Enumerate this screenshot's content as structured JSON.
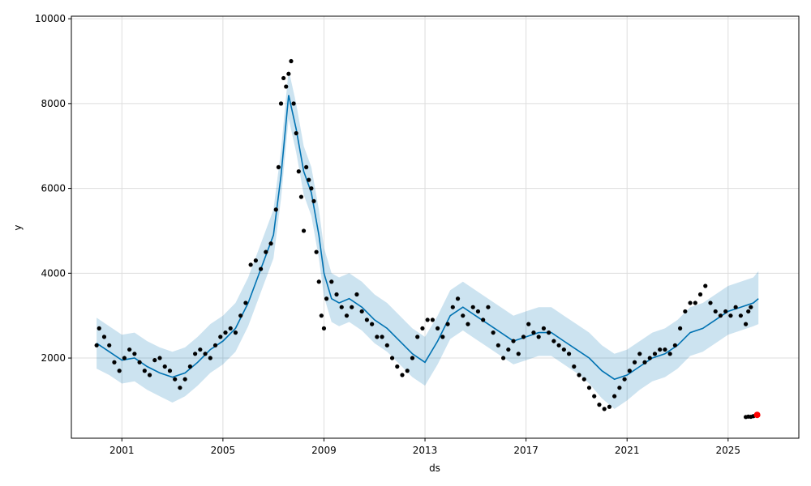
{
  "chart_data": {
    "type": "line",
    "title": "",
    "xlabel": "ds",
    "ylabel": "y",
    "xlim": [
      1999.0,
      2027.8
    ],
    "ylim": [
      110,
      10060
    ],
    "grid": true,
    "x_ticks": [
      2001,
      2005,
      2009,
      2013,
      2017,
      2021,
      2025
    ],
    "x_tick_labels": [
      "2001",
      "2005",
      "2009",
      "2013",
      "2017",
      "2021",
      "2025"
    ],
    "y_ticks": [
      2000,
      4000,
      6000,
      8000,
      10000
    ],
    "y_tick_labels": [
      "2000",
      "4000",
      "6000",
      "8000",
      "10000"
    ],
    "colors": {
      "observed": "#000000",
      "forecast": "#0072b2",
      "interval": "#0072b2",
      "highlight": "#ff0000",
      "grid": "#dddddd"
    },
    "observed": {
      "x": [
        2000.0,
        2000.1,
        2000.3,
        2000.5,
        2000.7,
        2000.9,
        2001.1,
        2001.3,
        2001.5,
        2001.7,
        2001.9,
        2002.1,
        2002.3,
        2002.5,
        2002.7,
        2002.9,
        2003.1,
        2003.3,
        2003.5,
        2003.7,
        2003.9,
        2004.1,
        2004.3,
        2004.5,
        2004.7,
        2004.9,
        2005.1,
        2005.3,
        2005.5,
        2005.7,
        2005.9,
        2006.1,
        2006.3,
        2006.5,
        2006.7,
        2006.9,
        2007.1,
        2007.2,
        2007.3,
        2007.4,
        2007.5,
        2007.6,
        2007.7,
        2007.8,
        2007.9,
        2008.0,
        2008.1,
        2008.2,
        2008.3,
        2008.4,
        2008.5,
        2008.6,
        2008.7,
        2008.8,
        2008.9,
        2009.0,
        2009.1,
        2009.3,
        2009.5,
        2009.7,
        2009.9,
        2010.1,
        2010.3,
        2010.5,
        2010.7,
        2010.9,
        2011.1,
        2011.3,
        2011.5,
        2011.7,
        2011.9,
        2012.1,
        2012.3,
        2012.5,
        2012.7,
        2012.9,
        2013.1,
        2013.3,
        2013.5,
        2013.7,
        2013.9,
        2014.1,
        2014.3,
        2014.5,
        2014.7,
        2014.9,
        2015.1,
        2015.3,
        2015.5,
        2015.7,
        2015.9,
        2016.1,
        2016.3,
        2016.5,
        2016.7,
        2016.9,
        2017.1,
        2017.3,
        2017.5,
        2017.7,
        2017.9,
        2018.1,
        2018.3,
        2018.5,
        2018.7,
        2018.9,
        2019.1,
        2019.3,
        2019.5,
        2019.7,
        2019.9,
        2020.1,
        2020.3,
        2020.5,
        2020.7,
        2020.9,
        2021.1,
        2021.3,
        2021.5,
        2021.7,
        2021.9,
        2022.1,
        2022.3,
        2022.5,
        2022.7,
        2022.9,
        2023.1,
        2023.3,
        2023.5,
        2023.7,
        2023.9,
        2024.1,
        2024.3,
        2024.5,
        2024.7,
        2024.9,
        2025.1,
        2025.3,
        2025.5,
        2025.7,
        2025.8,
        2025.9
      ],
      "y": [
        2300,
        2700,
        2500,
        2300,
        1900,
        1700,
        2000,
        2200,
        2100,
        1900,
        1700,
        1600,
        1950,
        2000,
        1800,
        1700,
        1500,
        1300,
        1500,
        1800,
        2100,
        2200,
        2100,
        2000,
        2300,
        2500,
        2600,
        2700,
        2600,
        3000,
        3300,
        4200,
        4300,
        4100,
        4500,
        4700,
        5500,
        6500,
        8000,
        8600,
        8400,
        8700,
        9000,
        8000,
        7300,
        6400,
        5800,
        5000,
        6500,
        6200,
        6000,
        5700,
        4500,
        3800,
        3000,
        2700,
        3400,
        3800,
        3500,
        3200,
        3000,
        3200,
        3500,
        3100,
        2900,
        2800,
        2500,
        2500,
        2300,
        2000,
        1800,
        1600,
        1700,
        2000,
        2500,
        2700,
        2900,
        2900,
        2700,
        2500,
        2800,
        3200,
        3400,
        3000,
        2800,
        3200,
        3100,
        2900,
        3200,
        2600,
        2300,
        2000,
        2200,
        2400,
        2100,
        2500,
        2800,
        2600,
        2500,
        2700,
        2600,
        2400,
        2300,
        2200,
        2100,
        1800,
        1600,
        1500,
        1300,
        1100,
        900,
        800,
        850,
        1100,
        1300,
        1500,
        1700,
        1900,
        2100,
        1900,
        2000,
        2100,
        2200,
        2200,
        2100,
        2300,
        2700,
        3100,
        3300,
        3300,
        3500,
        3700,
        3300,
        3100,
        3000,
        3100,
        3000,
        3200,
        3000,
        2800,
        3100,
        3200
      ]
    },
    "forecast": {
      "x": [
        2000.0,
        2000.5,
        2001.0,
        2001.5,
        2002.0,
        2002.5,
        2003.0,
        2003.5,
        2004.0,
        2004.5,
        2005.0,
        2005.5,
        2006.0,
        2006.5,
        2007.0,
        2007.3,
        2007.6,
        2007.9,
        2008.2,
        2008.5,
        2008.8,
        2009.0,
        2009.3,
        2009.6,
        2010.0,
        2010.5,
        2011.0,
        2011.5,
        2012.0,
        2012.5,
        2013.0,
        2013.5,
        2014.0,
        2014.5,
        2015.0,
        2015.5,
        2016.0,
        2016.5,
        2017.0,
        2017.5,
        2018.0,
        2018.5,
        2019.0,
        2019.5,
        2020.0,
        2020.5,
        2021.0,
        2021.5,
        2022.0,
        2022.5,
        2023.0,
        2023.5,
        2024.0,
        2024.5,
        2025.0,
        2025.5,
        2026.0,
        2026.2
      ],
      "y": [
        2350,
        2150,
        1950,
        2000,
        1800,
        1650,
        1550,
        1650,
        1900,
        2200,
        2400,
        2700,
        3300,
        4100,
        4900,
        6300,
        8200,
        7400,
        6400,
        5900,
        4900,
        4000,
        3400,
        3300,
        3400,
        3200,
        2900,
        2700,
        2400,
        2100,
        1900,
        2400,
        3000,
        3200,
        3000,
        2800,
        2600,
        2400,
        2500,
        2600,
        2600,
        2400,
        2200,
        2000,
        1700,
        1500,
        1600,
        1800,
        2000,
        2100,
        2300,
        2600,
        2700,
        2900,
        3100,
        3200,
        3300,
        3400
      ],
      "lower": [
        1750,
        1600,
        1400,
        1450,
        1250,
        1100,
        950,
        1100,
        1350,
        1650,
        1850,
        2150,
        2750,
        3550,
        4350,
        5750,
        7650,
        6850,
        5850,
        5350,
        4350,
        3450,
        2850,
        2750,
        2850,
        2650,
        2350,
        2150,
        1850,
        1550,
        1350,
        1850,
        2450,
        2650,
        2450,
        2250,
        2050,
        1850,
        1950,
        2050,
        2050,
        1850,
        1650,
        1400,
        1050,
        800,
        1000,
        1250,
        1450,
        1550,
        1750,
        2050,
        2150,
        2350,
        2550,
        2650,
        2750,
        2800
      ],
      "upper": [
        2950,
        2750,
        2550,
        2600,
        2400,
        2250,
        2150,
        2250,
        2500,
        2800,
        3000,
        3300,
        3900,
        4700,
        5500,
        6900,
        8800,
        8000,
        7000,
        6500,
        5500,
        4600,
        4000,
        3900,
        4000,
        3800,
        3500,
        3300,
        3000,
        2700,
        2500,
        3000,
        3600,
        3800,
        3600,
        3400,
        3200,
        3000,
        3100,
        3200,
        3200,
        3000,
        2800,
        2600,
        2300,
        2100,
        2200,
        2400,
        2600,
        2700,
        2900,
        3200,
        3300,
        3500,
        3700,
        3800,
        3900,
        4050
      ]
    },
    "recent_points": {
      "x": [
        2025.7,
        2025.8,
        2025.9,
        2026.0,
        2026.1
      ],
      "y": [
        610,
        620,
        615,
        630,
        650
      ]
    },
    "highlight_point": {
      "x": 2026.15,
      "y": 660
    }
  }
}
